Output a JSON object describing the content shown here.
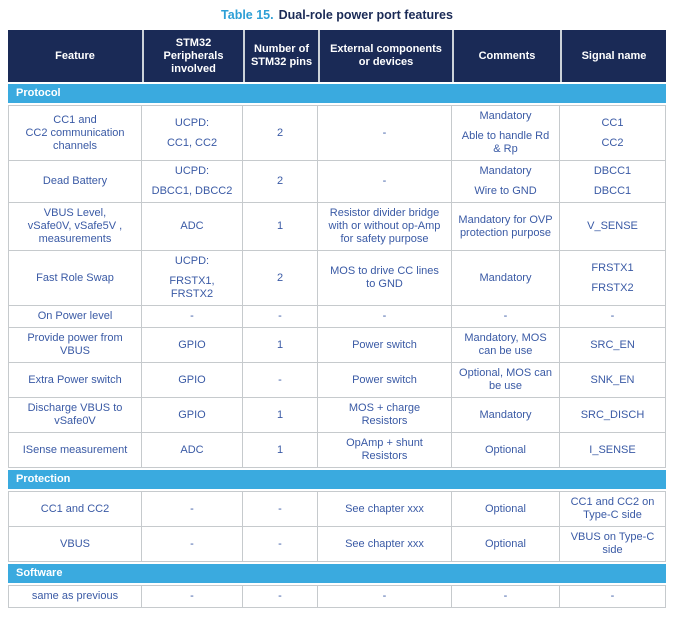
{
  "page": {
    "title_prefix": "Table 15.",
    "title_text": "Dual-role power port features"
  },
  "colors": {
    "header_bg": "#1a2a56",
    "section_bg": "#3aaadf",
    "title_number": "#2d9fd6",
    "body_text": "#3a5aa5",
    "cell_border": "#c6cacd"
  },
  "table": {
    "columns": [
      "Feature",
      "STM32\nPeripherals\ninvolved",
      "Number of\nSTM32 pins",
      "External components\nor devices",
      "Comments",
      "Signal name"
    ],
    "column_keys": [
      "feature",
      "peripherals",
      "pins",
      "external-components",
      "comments",
      "signal-name"
    ],
    "sections": [
      {
        "label": "Protocol",
        "rows": [
          {
            "cells": [
              [
                "CC1 and\nCC2 communication\nchannels"
              ],
              [
                "UCPD:",
                "CC1, CC2"
              ],
              [
                "2"
              ],
              [
                "-"
              ],
              [
                "Mandatory",
                "Able to handle Rd\n& Rp"
              ],
              [
                "CC1",
                "CC2"
              ]
            ]
          },
          {
            "cells": [
              [
                "Dead Battery"
              ],
              [
                "UCPD:",
                "DBCC1, DBCC2"
              ],
              [
                "2"
              ],
              [
                "-"
              ],
              [
                "Mandatory",
                "Wire to GND"
              ],
              [
                "DBCC1",
                "DBCC1"
              ]
            ]
          },
          {
            "cells": [
              [
                "VBUS Level,\nvSafe0V, vSafe5V ,\nmeasurements"
              ],
              [
                "ADC"
              ],
              [
                "1"
              ],
              [
                "Resistor divider bridge\nwith or without op-Amp\nfor safety purpose"
              ],
              [
                "Mandatory for OVP\nprotection purpose"
              ],
              [
                "V_SENSE"
              ]
            ]
          },
          {
            "cells": [
              [
                "Fast Role Swap"
              ],
              [
                "UCPD:",
                "FRSTX1,\nFRSTX2"
              ],
              [
                "2"
              ],
              [
                "MOS to drive CC lines\nto GND"
              ],
              [
                "Mandatory"
              ],
              [
                "FRSTX1",
                "FRSTX2"
              ]
            ]
          },
          {
            "cells": [
              [
                "On Power level"
              ],
              [
                "-"
              ],
              [
                "-"
              ],
              [
                "-"
              ],
              [
                "-"
              ],
              [
                "-"
              ]
            ]
          },
          {
            "cells": [
              [
                "Provide power from\nVBUS"
              ],
              [
                "GPIO"
              ],
              [
                "1"
              ],
              [
                "Power switch"
              ],
              [
                "Mandatory, MOS\ncan be use"
              ],
              [
                "SRC_EN"
              ]
            ]
          },
          {
            "cells": [
              [
                "Extra Power switch"
              ],
              [
                "GPIO"
              ],
              [
                "-"
              ],
              [
                "Power switch"
              ],
              [
                "Optional, MOS can\nbe use"
              ],
              [
                "SNK_EN"
              ]
            ]
          },
          {
            "cells": [
              [
                "Discharge VBUS to\nvSafe0V"
              ],
              [
                "GPIO"
              ],
              [
                "1"
              ],
              [
                "MOS + charge\nResistors"
              ],
              [
                "Mandatory"
              ],
              [
                "SRC_DISCH"
              ]
            ]
          },
          {
            "cells": [
              [
                "ISense measurement"
              ],
              [
                "ADC"
              ],
              [
                "1"
              ],
              [
                "OpAmp + shunt\nResistors"
              ],
              [
                "Optional"
              ],
              [
                "I_SENSE"
              ]
            ]
          }
        ]
      },
      {
        "label": "Protection",
        "rows": [
          {
            "cells": [
              [
                "CC1 and CC2"
              ],
              [
                "-"
              ],
              [
                "-"
              ],
              [
                "See chapter xxx"
              ],
              [
                "Optional"
              ],
              [
                "CC1 and CC2 on\nType-C side"
              ]
            ]
          },
          {
            "cells": [
              [
                "VBUS"
              ],
              [
                "-"
              ],
              [
                "-"
              ],
              [
                "See chapter xxx"
              ],
              [
                "Optional"
              ],
              [
                "VBUS on Type-C\nside"
              ]
            ]
          }
        ]
      },
      {
        "label": "Software",
        "rows": [
          {
            "cells": [
              [
                "same as previous"
              ],
              [
                "-"
              ],
              [
                "-"
              ],
              [
                "-"
              ],
              [
                "-"
              ],
              [
                "-"
              ]
            ]
          }
        ]
      }
    ]
  }
}
